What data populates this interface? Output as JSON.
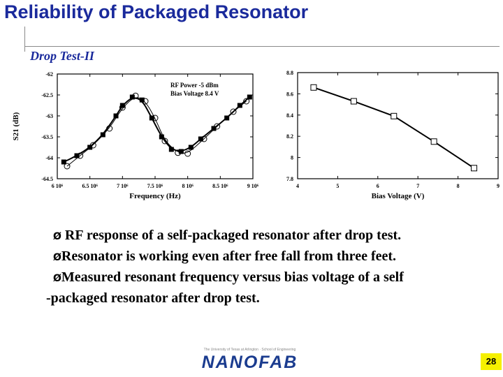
{
  "slide": {
    "title": "Reliability of Packaged Resonator",
    "subtitle": "Drop Test-II",
    "bullets": [
      {
        "marker": "Ø",
        "text": " RF response of a self-packaged resonator after drop test."
      },
      {
        "marker": "Ø",
        "text": "Resonator is working even after free fall from three feet."
      },
      {
        "marker": "Ø",
        "text": "Measured resonant frequency versus bias voltage of a self"
      },
      {
        "marker": "",
        "text": "-packaged resonator after drop test."
      }
    ],
    "logo_tagline": "The University of Texas at Arlington · School of Engineering",
    "logo_text": "NANOFAB",
    "page_number": "28"
  },
  "chart_data": [
    {
      "type": "line",
      "xlabel": "Frequency (Hz)",
      "ylabel": "S21 (dB)",
      "annotations": [
        "RF Power -5 dBm",
        "Bias Voltage 8.4 V"
      ],
      "xlim": [
        6000000,
        9000000
      ],
      "ylim": [
        -64.5,
        -62
      ],
      "x_ticks": [
        6000000,
        6500000,
        7000000,
        7500000,
        8000000,
        8500000,
        9000000
      ],
      "x_tick_labels": [
        "6 10⁶",
        "6.5 10⁶",
        "7 10⁶",
        "7.5 10⁶",
        "8 10⁶",
        "8.5 10⁶",
        "9 10⁶"
      ],
      "y_ticks": [
        -62,
        -62.5,
        -63,
        -63.5,
        -64,
        -64.5
      ],
      "y_tick_labels": [
        "-62",
        "-62.5",
        "-63",
        "-63.5",
        "-64",
        "-64.5"
      ],
      "series": [
        {
          "marker": "square",
          "x": [
            6100000,
            6300000,
            6500000,
            6700000,
            6900000,
            7000000,
            7150000,
            7300000,
            7450000,
            7600000,
            7750000,
            7900000,
            8050000,
            8200000,
            8400000,
            8600000,
            8800000,
            8950000
          ],
          "y": [
            -64.1,
            -63.95,
            -63.75,
            -63.45,
            -63.0,
            -62.75,
            -62.55,
            -62.62,
            -63.05,
            -63.5,
            -63.8,
            -63.85,
            -63.75,
            -63.55,
            -63.3,
            -63.05,
            -62.75,
            -62.55
          ]
        },
        {
          "marker": "circle",
          "x": [
            6150000,
            6350000,
            6550000,
            6800000,
            7000000,
            7200000,
            7350000,
            7500000,
            7650000,
            7850000,
            8000000,
            8250000,
            8450000,
            8700000,
            8900000
          ],
          "y": [
            -64.2,
            -63.95,
            -63.7,
            -63.3,
            -62.8,
            -62.52,
            -62.65,
            -63.05,
            -63.6,
            -63.88,
            -63.9,
            -63.55,
            -63.25,
            -62.9,
            -62.65
          ]
        }
      ]
    },
    {
      "type": "line",
      "xlabel": "Bias Voltage (V)",
      "ylabel": "",
      "xlim": [
        4,
        9
      ],
      "ylim": [
        7.8,
        8.8
      ],
      "x_ticks": [
        4,
        5,
        6,
        7,
        8,
        9
      ],
      "x_tick_labels": [
        "4",
        "5",
        "6",
        "7",
        "8",
        "9"
      ],
      "y_ticks": [
        7.8,
        8,
        8.2,
        8.4,
        8.6,
        8.8
      ],
      "y_tick_labels": [
        "7.8",
        "8",
        "8.2",
        "8.4",
        "8.6",
        "8.8"
      ],
      "series": [
        {
          "marker": "square",
          "x": [
            4.4,
            5.4,
            6.4,
            7.4,
            8.4
          ],
          "y": [
            8.66,
            8.53,
            8.39,
            8.15,
            7.9
          ]
        }
      ]
    }
  ]
}
